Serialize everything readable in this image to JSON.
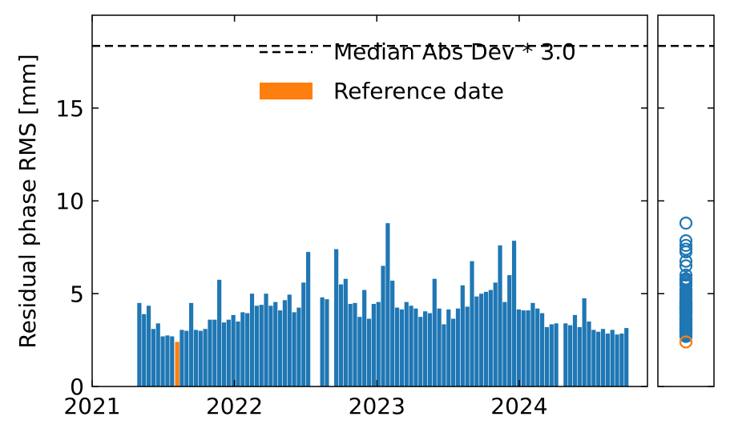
{
  "chart_data": {
    "type": "bar",
    "xlabel": "",
    "ylabel": "Residual phase RMS [mm]",
    "x_ticks": [
      "2021",
      "2022",
      "2023",
      "2024"
    ],
    "y_ticks": [
      "0",
      "5",
      "10",
      "15"
    ],
    "xlim": [
      "2021-01-01",
      "2024-11-25"
    ],
    "ylim": [
      0,
      20
    ],
    "grid": false,
    "legend_position": "top-right",
    "threshold": {
      "label": "Median Abs Dev * 3.0",
      "value": 18.35,
      "style": "dashed"
    },
    "reference": {
      "label": "Reference date",
      "date": "2021-08-07",
      "value": 2.4
    },
    "colors": {
      "bars": "#1f77b4",
      "reference": "#ff7f0e",
      "threshold": "#000000"
    },
    "series": [
      {
        "dates": [
          "2021-05-02",
          "2021-05-14",
          "2021-05-26",
          "2021-06-07",
          "2021-06-19",
          "2021-07-01",
          "2021-07-13",
          "2021-07-25",
          "2021-08-07",
          "2021-08-19",
          "2021-08-31",
          "2021-09-12",
          "2021-09-24",
          "2021-10-06",
          "2021-10-18",
          "2021-10-30",
          "2021-11-11",
          "2021-11-23",
          "2021-12-05",
          "2021-12-17",
          "2021-12-29",
          "2022-01-10",
          "2022-01-22",
          "2022-02-03",
          "2022-02-15",
          "2022-02-27",
          "2022-03-11",
          "2022-03-23",
          "2022-04-04",
          "2022-04-16",
          "2022-04-28",
          "2022-05-10",
          "2022-05-22",
          "2022-06-03",
          "2022-06-15",
          "2022-06-27",
          "2022-07-09",
          "2022-08-14",
          "2022-08-26",
          "2022-09-19",
          "2022-10-01",
          "2022-10-13",
          "2022-10-25",
          "2022-11-06",
          "2022-11-18",
          "2022-11-30",
          "2022-12-12",
          "2022-12-24",
          "2023-01-05",
          "2023-01-17",
          "2023-01-29",
          "2023-02-10",
          "2023-02-22",
          "2023-03-06",
          "2023-03-18",
          "2023-03-30",
          "2023-04-11",
          "2023-04-23",
          "2023-05-05",
          "2023-05-17",
          "2023-05-29",
          "2023-06-10",
          "2023-06-22",
          "2023-07-04",
          "2023-07-16",
          "2023-07-28",
          "2023-08-09",
          "2023-08-21",
          "2023-09-02",
          "2023-09-14",
          "2023-09-26",
          "2023-10-08",
          "2023-10-20",
          "2023-11-01",
          "2023-11-13",
          "2023-11-25",
          "2023-12-07",
          "2023-12-19",
          "2023-12-31",
          "2024-01-12",
          "2024-01-24",
          "2024-02-05",
          "2024-02-17",
          "2024-02-29",
          "2024-03-12",
          "2024-03-24",
          "2024-04-05",
          "2024-04-29",
          "2024-05-11",
          "2024-05-23",
          "2024-06-04",
          "2024-06-16",
          "2024-06-28",
          "2024-07-10",
          "2024-07-22",
          "2024-08-03",
          "2024-08-15",
          "2024-08-27",
          "2024-09-08",
          "2024-09-20",
          "2024-10-02"
        ],
        "values": [
          4.5,
          3.9,
          4.35,
          3.1,
          3.4,
          2.7,
          2.75,
          2.7,
          2.4,
          3.05,
          3.0,
          4.5,
          3.05,
          3.0,
          3.1,
          3.6,
          3.6,
          5.75,
          3.45,
          3.6,
          3.85,
          3.5,
          4.0,
          3.95,
          5.0,
          4.35,
          4.4,
          5.0,
          4.35,
          4.55,
          4.1,
          4.65,
          4.95,
          4.0,
          4.25,
          5.6,
          7.25,
          4.8,
          4.7,
          7.4,
          5.5,
          5.8,
          4.45,
          4.5,
          3.75,
          5.2,
          3.65,
          4.45,
          4.55,
          6.5,
          8.8,
          5.7,
          4.25,
          4.15,
          4.55,
          4.35,
          4.2,
          3.75,
          4.05,
          3.95,
          5.8,
          4.2,
          3.35,
          4.15,
          3.65,
          4.2,
          5.45,
          4.3,
          6.75,
          4.85,
          5.0,
          5.1,
          5.2,
          5.6,
          7.6,
          4.55,
          6.0,
          7.85,
          4.15,
          4.1,
          4.1,
          4.5,
          4.2,
          3.95,
          3.2,
          3.35,
          3.4,
          3.4,
          3.3,
          3.85,
          3.2,
          4.75,
          3.5,
          3.05,
          2.95,
          3.1,
          2.85,
          3.05,
          2.8,
          2.85,
          3.15
        ]
      }
    ]
  }
}
